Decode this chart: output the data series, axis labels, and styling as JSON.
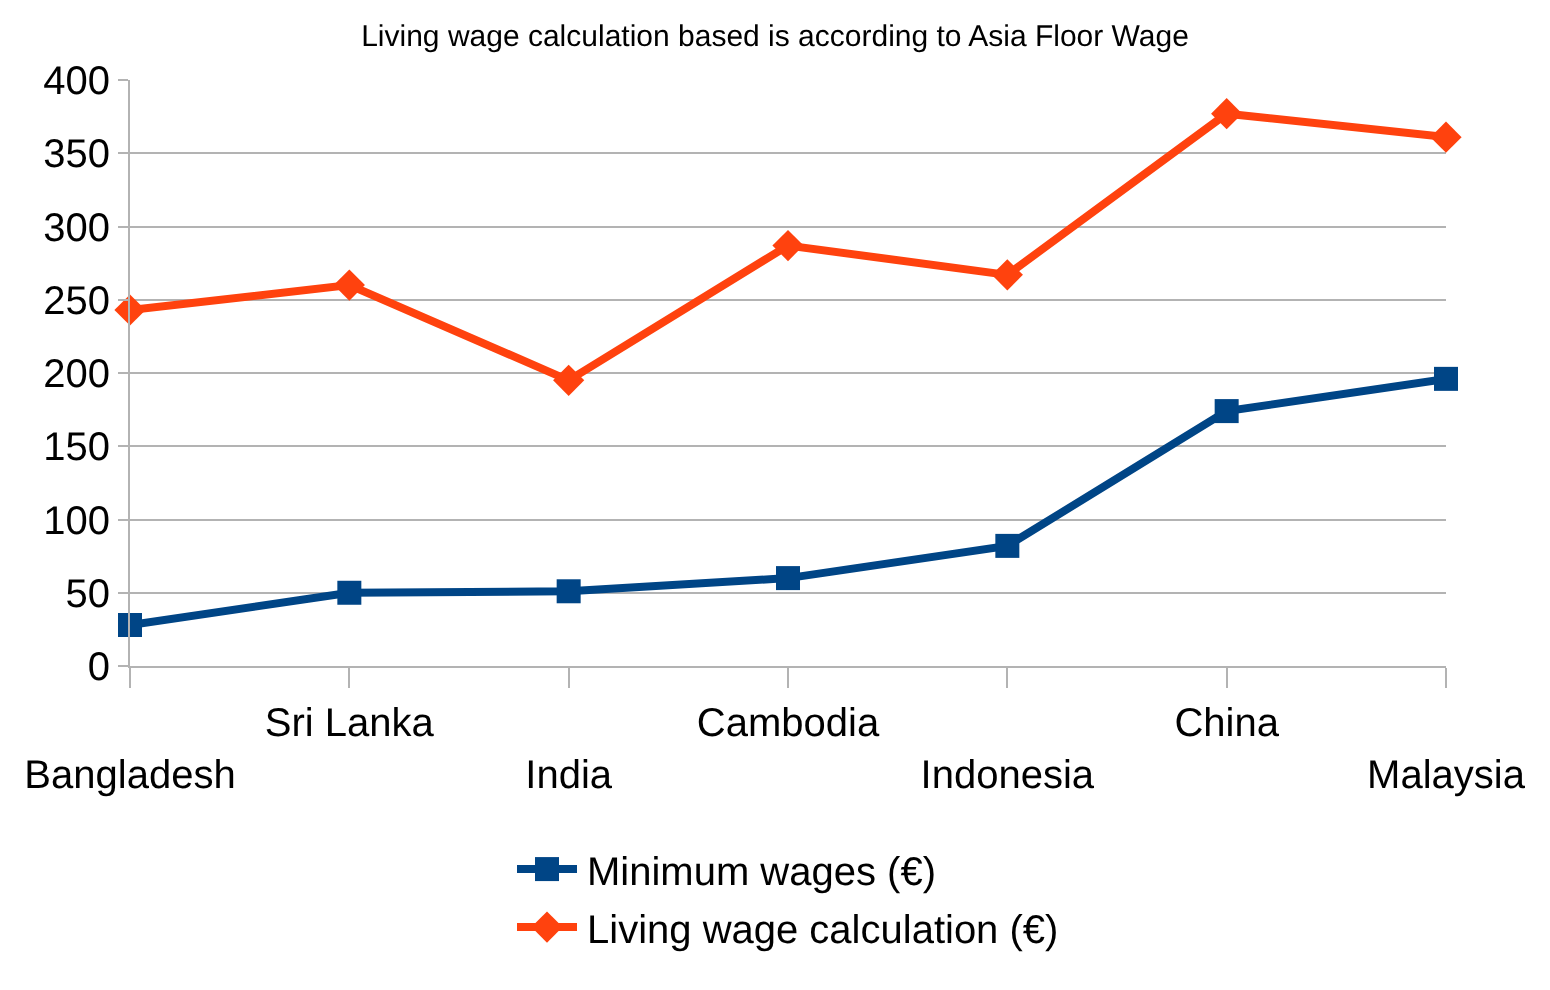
{
  "chart_data": {
    "type": "line",
    "title": "Living wage calculation based is according to Asia Floor Wage",
    "categories": [
      "Bangladesh",
      "Sri Lanka",
      "India",
      "Cambodia",
      "Indonesia",
      "China",
      "Malaysia"
    ],
    "series": [
      {
        "name": "Minimum wages (€)",
        "color": "#004586",
        "marker": "square",
        "values": [
          28,
          50,
          51,
          60,
          82,
          174,
          196
        ]
      },
      {
        "name": "Living wage calculation (€)",
        "color": "#ff420e",
        "marker": "diamond",
        "values": [
          243,
          260,
          195,
          287,
          267,
          377,
          361
        ]
      }
    ],
    "ylim": [
      0,
      400
    ],
    "yticks": [
      0,
      50,
      100,
      150,
      200,
      250,
      300,
      350,
      400
    ],
    "grid": "y",
    "legend": "bottom",
    "line_style": "solid"
  }
}
